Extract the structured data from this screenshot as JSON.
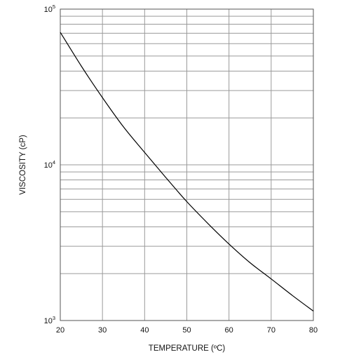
{
  "chart_data": {
    "type": "line",
    "title": "",
    "xlabel": "TEMPERATURE (ºC)",
    "ylabel": "VISCOSITY (cP)",
    "y_scale": "log",
    "xlim": [
      20,
      80
    ],
    "ylim": [
      1000,
      100000
    ],
    "x_ticks": [
      20,
      30,
      40,
      50,
      60,
      70,
      80
    ],
    "y_ticks": [
      {
        "base": "10",
        "exponent": "3",
        "value": 1000
      },
      {
        "base": "10",
        "exponent": "4",
        "value": 10000
      },
      {
        "base": "10",
        "exponent": "5",
        "value": 100000
      }
    ],
    "grid": true,
    "series": [
      {
        "color": "#000000",
        "x": [
          20,
          25,
          30,
          35,
          40,
          45,
          50,
          55,
          60,
          65,
          70,
          75,
          80
        ],
        "y": [
          71000,
          43000,
          27000,
          17500,
          12000,
          8300,
          5800,
          4200,
          3100,
          2350,
          1850,
          1450,
          1150
        ]
      }
    ]
  }
}
